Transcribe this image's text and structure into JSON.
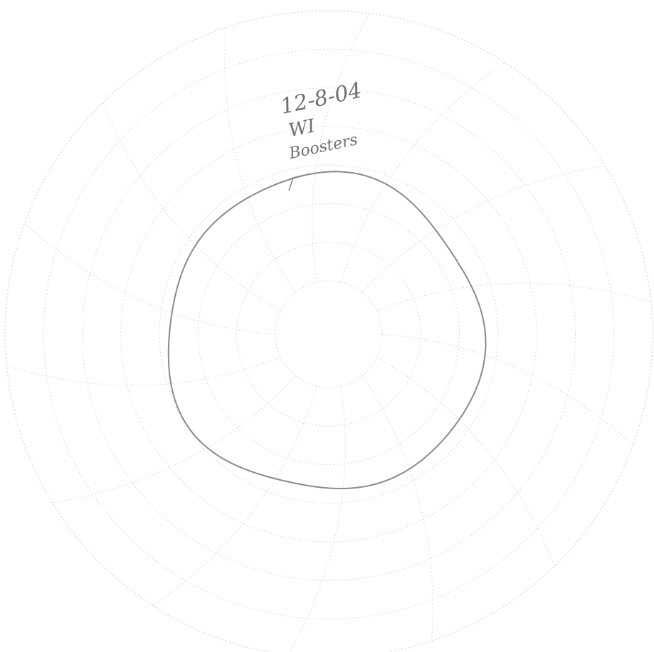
{
  "chart_data": {
    "type": "line",
    "form": "circular-chart-recorder-disk",
    "grid": true,
    "spoke_count": 14,
    "ring_count": 7,
    "trace_color": "#8a8a8a",
    "grid_color": "#d9d9d9",
    "annotation": {
      "lines": [
        "12-8-04",
        "WI",
        "Boosters"
      ]
    }
  }
}
